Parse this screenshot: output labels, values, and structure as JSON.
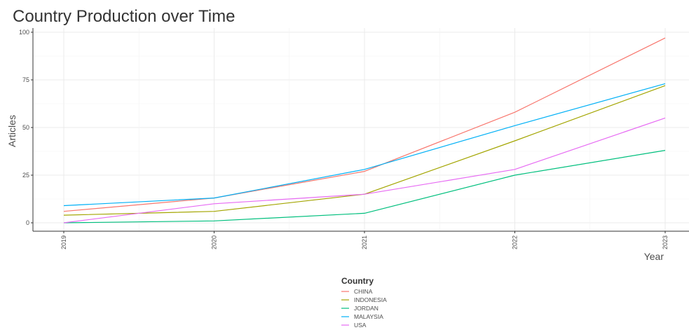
{
  "chart_data": {
    "type": "line",
    "title": "Country Production over Time",
    "xlabel": "Year",
    "ylabel": "Articles",
    "x": [
      "2019",
      "2020",
      "2021",
      "2022",
      "2023"
    ],
    "xlim": [
      2019,
      2023
    ],
    "ylim": [
      -3,
      100
    ],
    "yticks": [
      0,
      25,
      50,
      75,
      100
    ],
    "grid": true,
    "legend": {
      "title": "Country",
      "position": "bottom"
    },
    "series": [
      {
        "name": "CHINA",
        "color": "#F8766D",
        "values": [
          6,
          13,
          27,
          58,
          97
        ]
      },
      {
        "name": "INDONESIA",
        "color": "#A3A500",
        "values": [
          4,
          6,
          15,
          43,
          72
        ]
      },
      {
        "name": "JORDAN",
        "color": "#00BF7D",
        "values": [
          0,
          1,
          5,
          25,
          38
        ]
      },
      {
        "name": "MALAYSIA",
        "color": "#00B0F6",
        "values": [
          9,
          13,
          28,
          51,
          73
        ]
      },
      {
        "name": "USA",
        "color": "#E76BF3",
        "values": [
          0,
          10,
          15,
          28,
          55
        ]
      }
    ]
  }
}
